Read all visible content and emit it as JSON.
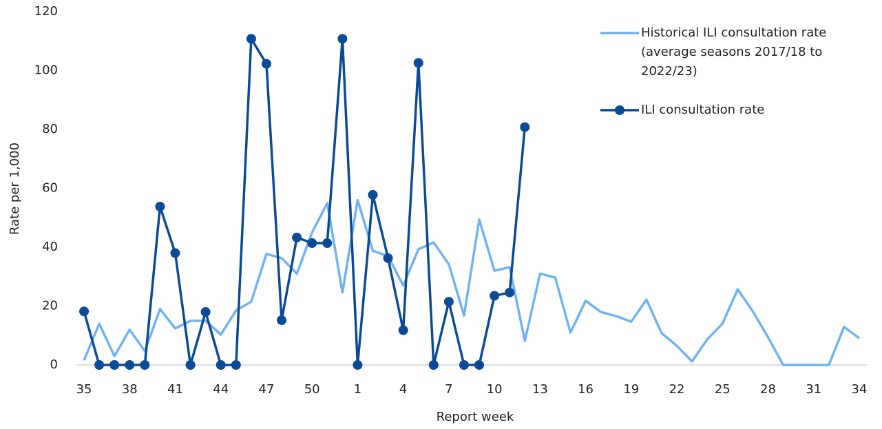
{
  "chart_data": {
    "type": "line",
    "x_label": "Report week",
    "y_label": "Rate per 1,000",
    "categories": [
      35,
      null,
      null,
      38,
      null,
      null,
      41,
      null,
      null,
      44,
      null,
      null,
      47,
      null,
      null,
      50,
      null,
      null,
      1,
      null,
      null,
      4,
      null,
      null,
      7,
      null,
      null,
      10,
      null,
      null,
      13,
      null,
      null,
      16,
      null,
      null,
      19,
      null,
      null,
      22,
      null,
      null,
      25,
      null,
      null,
      28,
      null,
      null,
      31,
      null,
      null,
      34
    ],
    "series": [
      {
        "name": "Historical ILI consultation rate (average seasons 2017/18 to 2022/23)",
        "color": "#70b3f0",
        "markers": false,
        "values": [
          1.6,
          14,
          3,
          12,
          4.7,
          19,
          12.4,
          15,
          15,
          10.3,
          18.5,
          21.5,
          37.7,
          36.3,
          31,
          45,
          55,
          24.6,
          56,
          38.8,
          37,
          27,
          39.3,
          41.6,
          34.2,
          16.8,
          49.4,
          32,
          33.2,
          8.2,
          31,
          29.7,
          11,
          21.8,
          18,
          16.6,
          14.7,
          22.2,
          10.8,
          6.5,
          1.2,
          8.7,
          14,
          25.7,
          18.2,
          9.4,
          0,
          0,
          0,
          0,
          12.9,
          9.1
        ]
      },
      {
        "name": "ILI consultation rate",
        "color": "#0b4a96",
        "markers": true,
        "values": [
          18.2,
          0,
          0,
          0,
          0,
          53.8,
          38,
          0,
          18,
          0,
          0,
          110.8,
          102.3,
          15.2,
          43.3,
          41.4,
          41.4,
          110.8,
          0,
          57.8,
          36.3,
          11.8,
          102.6,
          0,
          21.5,
          0,
          0,
          23.5,
          24.6,
          80.8,
          null,
          null,
          null,
          null,
          null,
          null,
          null,
          null,
          null,
          null,
          null,
          null,
          null,
          null,
          null,
          null,
          null,
          null,
          null,
          null,
          null,
          null
        ]
      }
    ],
    "ylim": [
      0,
      120
    ],
    "yticks": [
      0,
      20,
      40,
      60,
      80,
      100,
      120
    ],
    "grid": false,
    "legend": "top-right"
  }
}
